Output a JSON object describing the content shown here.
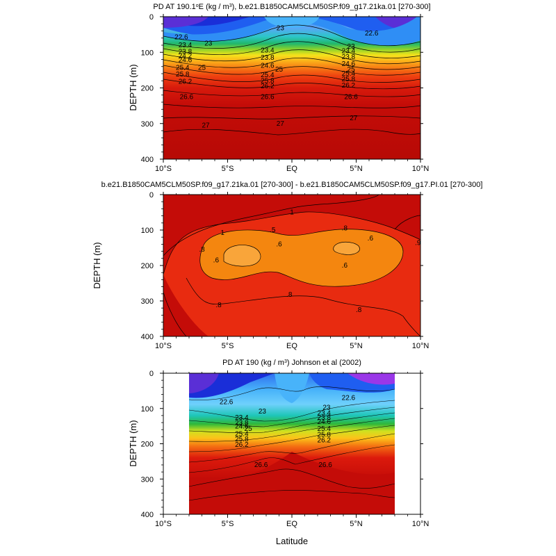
{
  "chart_data": [
    {
      "type": "contour",
      "id": "panel-top",
      "title_parts": [
        "PD AT 190.1",
        "o",
        "E (kg / m",
        "3",
        "), b.e21.B1850CAM5CLM50SP.f09_g17.21ka.01 [270-300]"
      ],
      "ylabel": "DEPTH (m)",
      "xlabel": "",
      "xlim": [
        -10,
        10
      ],
      "ylim": [
        0,
        400
      ],
      "x_ticks": [
        -10,
        -5,
        0,
        5,
        10
      ],
      "x_tick_labels": [
        "10°S",
        "5°S",
        "EQ",
        "5°N",
        "10°N"
      ],
      "y_ticks": [
        0,
        100,
        200,
        300,
        400
      ],
      "y_tick_labels": [
        "0",
        "100",
        "200",
        "300",
        "400"
      ],
      "contour_labels": [
        {
          "text": "22.6",
          "lat": -8.6,
          "depth": 58
        },
        {
          "text": "23",
          "lat": -6.5,
          "depth": 75
        },
        {
          "text": "23",
          "lat": -0.9,
          "depth": 32
        },
        {
          "text": "22.6",
          "lat": 6.2,
          "depth": 47
        },
        {
          "text": "23",
          "lat": 4.6,
          "depth": 84
        },
        {
          "text": "23.4",
          "lat": -8.3,
          "depth": 80
        },
        {
          "text": "23.4",
          "lat": -1.9,
          "depth": 95
        },
        {
          "text": "23.4",
          "lat": 4.4,
          "depth": 97
        },
        {
          "text": "23.8",
          "lat": -8.3,
          "depth": 99
        },
        {
          "text": "23.8",
          "lat": -1.9,
          "depth": 115
        },
        {
          "text": "23.8",
          "lat": 4.4,
          "depth": 113
        },
        {
          "text": "24.2",
          "lat": -8.3,
          "depth": 110
        },
        {
          "text": "24.6",
          "lat": -8.3,
          "depth": 122
        },
        {
          "text": "24.6",
          "lat": -1.9,
          "depth": 138
        },
        {
          "text": "24.6",
          "lat": 4.4,
          "depth": 133
        },
        {
          "text": "25",
          "lat": -7.0,
          "depth": 143
        },
        {
          "text": "25",
          "lat": -1.0,
          "depth": 148
        },
        {
          "text": "25",
          "lat": 4.6,
          "depth": 148
        },
        {
          "text": "25.4",
          "lat": -8.5,
          "depth": 143
        },
        {
          "text": "25.4",
          "lat": -1.9,
          "depth": 164
        },
        {
          "text": "25.4",
          "lat": 4.4,
          "depth": 160
        },
        {
          "text": "25.8",
          "lat": -8.5,
          "depth": 162
        },
        {
          "text": "25.8",
          "lat": -1.9,
          "depth": 180
        },
        {
          "text": "25.8",
          "lat": 4.4,
          "depth": 176
        },
        {
          "text": "26.2",
          "lat": -8.3,
          "depth": 182
        },
        {
          "text": "26.2",
          "lat": -1.9,
          "depth": 195
        },
        {
          "text": "26.2",
          "lat": 4.4,
          "depth": 193
        },
        {
          "text": "26.6",
          "lat": -8.2,
          "depth": 225
        },
        {
          "text": "26.6",
          "lat": -1.9,
          "depth": 225
        },
        {
          "text": "26.6",
          "lat": 4.6,
          "depth": 225
        },
        {
          "text": "27",
          "lat": -6.7,
          "depth": 305
        },
        {
          "text": "27",
          "lat": -0.9,
          "depth": 300
        },
        {
          "text": "27",
          "lat": 4.8,
          "depth": 285
        }
      ]
    },
    {
      "type": "contour",
      "id": "panel-mid",
      "title_parts": [
        "b.e21.B1850CAM5CLM50SP.f09_g17.21ka.01 [270-300] - b.e21.B1850CAM5CLM50SP.f09_g17.PI.01 [270-300]"
      ],
      "ylabel": "DEPTH (m)",
      "xlabel": "",
      "xlim": [
        -10,
        10
      ],
      "ylim": [
        0,
        400
      ],
      "x_ticks": [
        -10,
        -5,
        0,
        5,
        10
      ],
      "x_tick_labels": [
        "10°S",
        "5°S",
        "EQ",
        "5°N",
        "10°N"
      ],
      "y_ticks": [
        0,
        100,
        200,
        300,
        400
      ],
      "y_tick_labels": [
        "0",
        "100",
        "200",
        "300",
        "400"
      ],
      "contour_labels": [
        {
          "text": "1",
          "lat": -5.4,
          "depth": 108
        },
        {
          "text": "1",
          "lat": 0.0,
          "depth": 50
        },
        {
          "text": ".9",
          "lat": 9.8,
          "depth": 136
        },
        {
          "text": ".8",
          "lat": -7.0,
          "depth": 155
        },
        {
          "text": ".8",
          "lat": -5.7,
          "depth": 312
        },
        {
          "text": ".8",
          "lat": -0.2,
          "depth": 282
        },
        {
          "text": ".8",
          "lat": 5.2,
          "depth": 325
        },
        {
          "text": ".8",
          "lat": 4.1,
          "depth": 95
        },
        {
          "text": ".6",
          "lat": -5.9,
          "depth": 185
        },
        {
          "text": ".6",
          "lat": -1.0,
          "depth": 140
        },
        {
          "text": ".6",
          "lat": 4.1,
          "depth": 200
        },
        {
          "text": ".6",
          "lat": 6.1,
          "depth": 124
        },
        {
          "text": ".5",
          "lat": -1.5,
          "depth": 100
        }
      ]
    },
    {
      "type": "contour",
      "id": "panel-bottom",
      "title_parts": [
        "PD AT 190 (kg / m",
        "3",
        ") Johnson et al (2002)"
      ],
      "ylabel": "DEPTH (m)",
      "xlabel": "Latitude",
      "xlim": [
        -10,
        10
      ],
      "ylim": [
        0,
        400
      ],
      "data_lat_range": [
        -8,
        8
      ],
      "x_ticks": [
        -10,
        -5,
        0,
        5,
        10
      ],
      "x_tick_labels": [
        "10°S",
        "5°S",
        "EQ",
        "5°N",
        "10°N"
      ],
      "y_ticks": [
        0,
        100,
        200,
        300,
        400
      ],
      "y_tick_labels": [
        "0",
        "100",
        "200",
        "300",
        "400"
      ],
      "contour_labels": [
        {
          "text": "22.6",
          "lat": -5.1,
          "depth": 82
        },
        {
          "text": "23",
          "lat": -2.3,
          "depth": 108
        },
        {
          "text": "22.6",
          "lat": 4.4,
          "depth": 70
        },
        {
          "text": "23",
          "lat": 2.7,
          "depth": 98
        },
        {
          "text": "23.4",
          "lat": -3.9,
          "depth": 126
        },
        {
          "text": "23.4",
          "lat": 2.5,
          "depth": 113
        },
        {
          "text": "23.8",
          "lat": -3.9,
          "depth": 141
        },
        {
          "text": "23.8",
          "lat": 2.5,
          "depth": 126
        },
        {
          "text": "24.6",
          "lat": -3.9,
          "depth": 151
        },
        {
          "text": "24.6",
          "lat": 2.5,
          "depth": 138
        },
        {
          "text": "25",
          "lat": -3.4,
          "depth": 158
        },
        {
          "text": "25.4",
          "lat": -3.9,
          "depth": 172
        },
        {
          "text": "25.4",
          "lat": 2.5,
          "depth": 158
        },
        {
          "text": "25.8",
          "lat": -3.9,
          "depth": 187
        },
        {
          "text": "25.8",
          "lat": 2.5,
          "depth": 174
        },
        {
          "text": "26.2",
          "lat": -3.9,
          "depth": 203
        },
        {
          "text": "26.2",
          "lat": 2.5,
          "depth": 190
        },
        {
          "text": "26.6",
          "lat": -2.4,
          "depth": 260
        },
        {
          "text": "26.6",
          "lat": 2.6,
          "depth": 260
        }
      ]
    }
  ],
  "colors": {
    "palette": [
      "#9a37e8",
      "#5a2fd6",
      "#1a2ed8",
      "#1f5ef0",
      "#2f8ef5",
      "#48b3fa",
      "#6fd0fc",
      "#3fd8e3",
      "#1ec6b8",
      "#10b07a",
      "#2fb83a",
      "#7ed12b",
      "#cfe11f",
      "#f7e41a",
      "#fcc31a",
      "#f99a16",
      "#f46d12",
      "#ee3f10",
      "#dc1a0c",
      "#c40c08",
      "#b70a05"
    ],
    "diff_palette": [
      "#c40c08",
      "#e82b10",
      "#f4860f",
      "#f9a53a"
    ],
    "line": "#000000"
  }
}
